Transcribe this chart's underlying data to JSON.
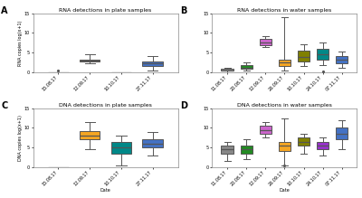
{
  "title_A": "RNA detections in plate samples",
  "title_B": "RNA detections in water samples",
  "title_C": "DNA detections in plate samples",
  "title_D": "DNA detections in water samples",
  "ylabel_top": "RNA copies log(x+1)",
  "ylabel_bottom": "DNA copies log(x+1)",
  "xlabel": "Date",
  "plate_dates": [
    "15.08.17",
    "12.09.17",
    "10.10.17",
    "27.11.17"
  ],
  "water_dates": [
    "11.08.17",
    "20.08.17",
    "12.09.17",
    "26.09.17",
    "10.10.17",
    "24.10.17",
    "07.11.17"
  ],
  "RNA_plate_colors": [
    "#aaaaaa",
    "#f5a623",
    "#aaaaaa",
    "#4472c4"
  ],
  "RNA_plate_data": [
    {
      "med": 0,
      "q1": 0,
      "q3": 0,
      "whislo": 0,
      "whishi": 0,
      "fliers": [
        0.4
      ]
    },
    {
      "med": 3.0,
      "q1": 2.8,
      "q3": 3.2,
      "whislo": 2.3,
      "whishi": 4.5,
      "fliers": []
    },
    {
      "med": 0,
      "q1": 0,
      "q3": 0,
      "whislo": 0,
      "whishi": 0,
      "fliers": []
    },
    {
      "med": 2.2,
      "q1": 1.5,
      "q3": 2.8,
      "whislo": 0.5,
      "whishi": 4.2,
      "fliers": []
    }
  ],
  "RNA_water_colors": [
    "#888888",
    "#228B22",
    "#cc66cc",
    "#f5a623",
    "#808000",
    "#008888",
    "#4472c4"
  ],
  "RNA_water_data": [
    {
      "med": 0.5,
      "q1": 0.3,
      "q3": 0.8,
      "whislo": 0.0,
      "whishi": 1.2,
      "fliers": []
    },
    {
      "med": 1.2,
      "q1": 0.8,
      "q3": 1.8,
      "whislo": 0.3,
      "whishi": 2.5,
      "fliers": []
    },
    {
      "med": 7.5,
      "q1": 6.8,
      "q3": 8.5,
      "whislo": 6.3,
      "whishi": 9.2,
      "fliers": []
    },
    {
      "med": 2.5,
      "q1": 1.5,
      "q3": 3.2,
      "whislo": 0.5,
      "whishi": 14.0,
      "fliers": []
    },
    {
      "med": 3.8,
      "q1": 2.8,
      "q3": 5.5,
      "whislo": 1.5,
      "whishi": 7.0,
      "fliers": []
    },
    {
      "med": 4.5,
      "q1": 3.2,
      "q3": 6.0,
      "whislo": 1.8,
      "whishi": 7.5,
      "fliers": [
        0.2
      ]
    },
    {
      "med": 3.2,
      "q1": 2.2,
      "q3": 4.2,
      "whislo": 1.2,
      "whishi": 5.2,
      "fliers": []
    }
  ],
  "DNA_plate_colors": [
    "#aaaaaa",
    "#f5a623",
    "#008888",
    "#4472c4"
  ],
  "DNA_plate_data": [
    {
      "med": 0,
      "q1": 0,
      "q3": 0,
      "whislo": 0,
      "whishi": 0,
      "fliers": []
    },
    {
      "med": 8.0,
      "q1": 7.0,
      "q3": 9.2,
      "whislo": 4.5,
      "whishi": 11.5,
      "fliers": []
    },
    {
      "med": 5.0,
      "q1": 3.5,
      "q3": 6.5,
      "whislo": 0.5,
      "whishi": 8.0,
      "fliers": []
    },
    {
      "med": 6.0,
      "q1": 5.0,
      "q3": 7.0,
      "whislo": 3.0,
      "whishi": 9.0,
      "fliers": []
    }
  ],
  "DNA_water_colors": [
    "#888888",
    "#228B22",
    "#cc66cc",
    "#f5a623",
    "#808000",
    "#9932cc",
    "#4472c4"
  ],
  "DNA_water_data": [
    {
      "med": 4.5,
      "q1": 3.5,
      "q3": 5.5,
      "whislo": 1.5,
      "whishi": 6.5,
      "fliers": []
    },
    {
      "med": 4.5,
      "q1": 3.5,
      "q3": 5.5,
      "whislo": 2.0,
      "whishi": 7.0,
      "fliers": []
    },
    {
      "med": 9.5,
      "q1": 8.5,
      "q3": 10.5,
      "whislo": 7.5,
      "whishi": 11.5,
      "fliers": []
    },
    {
      "med": 5.5,
      "q1": 4.0,
      "q3": 6.5,
      "whislo": 0.5,
      "whishi": 12.5,
      "fliers": [
        0.3
      ]
    },
    {
      "med": 6.5,
      "q1": 5.5,
      "q3": 7.5,
      "whislo": 3.5,
      "whishi": 8.5,
      "fliers": []
    },
    {
      "med": 5.5,
      "q1": 4.5,
      "q3": 6.5,
      "whislo": 3.0,
      "whishi": 7.5,
      "fliers": []
    },
    {
      "med": 8.5,
      "q1": 7.0,
      "q3": 10.0,
      "whislo": 4.5,
      "whishi": 12.0,
      "fliers": []
    }
  ],
  "yticks": [
    0,
    5,
    10,
    15
  ],
  "ylim": [
    0,
    15
  ],
  "bg_color": "#ffffff",
  "panel_bg": "#ffffff",
  "median_color": "#555555",
  "whisker_color": "#555555"
}
